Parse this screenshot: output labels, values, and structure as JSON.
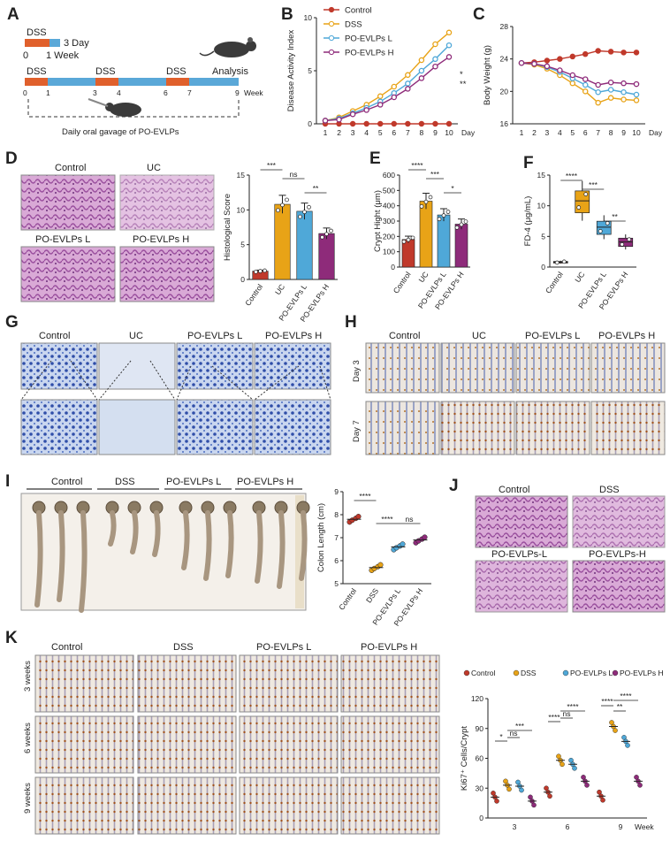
{
  "panels": [
    "A",
    "B",
    "C",
    "D",
    "E",
    "F",
    "G",
    "H",
    "I",
    "J",
    "K"
  ],
  "panel_a": {
    "dss": "DSS",
    "day3": "3 Day",
    "zero": "0",
    "week1": "1 Week",
    "analysis": "Analysis",
    "timeline_dss": [
      "DSS",
      "DSS",
      "DSS"
    ],
    "ticks": [
      "0",
      "1",
      "3",
      "4",
      "6",
      "7",
      "9"
    ],
    "week_label": "Week",
    "gavage": "Daily oral gavage of PO-EVLPs"
  },
  "groups4_ctrl": [
    "Control",
    "DSS",
    "PO-EVLPs L",
    "PO-EVLPs H"
  ],
  "groups4_uc": [
    "Control",
    "UC",
    "PO-EVLPs L",
    "PO-EVLPs H"
  ],
  "group_colors": {
    "Control": "#c0392b",
    "DSS": "#e8a317",
    "L": "#4fa8d8",
    "H": "#8e2b7a"
  },
  "legend_b": [
    "Control",
    "DSS",
    "PO-EVLPs L",
    "PO-EVLPs H"
  ],
  "panel_j_labels": [
    "Control",
    "DSS",
    "PO-EVLPs-L",
    "PO-EVLPs-H"
  ],
  "panel_h_rows": [
    "Day 3",
    "Day 7"
  ],
  "panel_k_rows": [
    "3 weeks",
    "6 weeks",
    "9 weeks"
  ],
  "chart_data": [
    {
      "panel": "B",
      "type": "line",
      "xlabel": "Day",
      "ylabel": "Disease Activity Index",
      "x": [
        1,
        2,
        3,
        4,
        5,
        6,
        7,
        8,
        9,
        10
      ],
      "ylim": [
        0,
        10
      ],
      "yticks": [
        0,
        5,
        10
      ],
      "series": [
        {
          "name": "Control",
          "values": [
            0,
            0,
            0,
            0,
            0,
            0,
            0,
            0,
            0,
            0
          ]
        },
        {
          "name": "DSS",
          "values": [
            0.3,
            0.6,
            1.2,
            1.8,
            2.6,
            3.5,
            4.6,
            6.0,
            7.5,
            8.6
          ]
        },
        {
          "name": "PO-EVLPs L",
          "values": [
            0.3,
            0.5,
            1.0,
            1.5,
            2.1,
            2.9,
            3.8,
            5.0,
            6.1,
            7.4
          ]
        },
        {
          "name": "PO-EVLPs H",
          "values": [
            0.3,
            0.4,
            0.9,
            1.3,
            1.8,
            2.5,
            3.3,
            4.3,
            5.4,
            6.3
          ]
        }
      ],
      "annotations": [
        "*",
        "**"
      ]
    },
    {
      "panel": "C",
      "type": "line",
      "xlabel": "Day",
      "ylabel": "Body Weight (g)",
      "x": [
        1,
        2,
        3,
        4,
        5,
        6,
        7,
        8,
        9,
        10
      ],
      "ylim": [
        16,
        28
      ],
      "yticks": [
        16,
        20,
        24,
        28
      ],
      "series": [
        {
          "name": "Control",
          "values": [
            23.5,
            23.6,
            23.8,
            24.0,
            24.3,
            24.6,
            25.0,
            24.9,
            24.8,
            24.8
          ]
        },
        {
          "name": "DSS",
          "values": [
            23.5,
            23.3,
            22.8,
            22.0,
            21.0,
            20.0,
            18.6,
            19.2,
            19.0,
            18.9
          ]
        },
        {
          "name": "PO-EVLPs L",
          "values": [
            23.5,
            23.4,
            23.0,
            22.4,
            21.6,
            20.8,
            19.9,
            20.2,
            19.9,
            19.6
          ]
        },
        {
          "name": "PO-EVLPs H",
          "values": [
            23.5,
            23.4,
            23.1,
            22.6,
            22.0,
            21.5,
            20.8,
            21.1,
            21.0,
            20.9
          ]
        }
      ]
    },
    {
      "panel": "D",
      "type": "bar",
      "ylabel": "Histological Score",
      "categories": [
        "Control",
        "UC",
        "PO-EVLPs L",
        "PO-EVLPs H"
      ],
      "values": [
        1.2,
        10.8,
        9.8,
        6.6
      ],
      "ylim": [
        0,
        15
      ],
      "yticks": [
        0,
        5,
        10,
        15
      ],
      "annotations": [
        "***",
        "ns",
        "**"
      ]
    },
    {
      "panel": "E",
      "type": "bar",
      "ylabel": "Crypt Hight (μm)",
      "categories": [
        "Control",
        "UC",
        "PO-EVLPs L",
        "PO-EVLPs H"
      ],
      "values": [
        180,
        430,
        340,
        280
      ],
      "ylim": [
        0,
        600
      ],
      "yticks": [
        0,
        100,
        200,
        300,
        400,
        500,
        600
      ],
      "annotations": [
        "****",
        "***",
        "*"
      ]
    },
    {
      "panel": "F",
      "type": "box",
      "ylabel": "FD-4 (μg/mL)",
      "categories": [
        "Control",
        "UC",
        "PO-EVLPs L",
        "PO-EVLPs H"
      ],
      "values": [
        0.8,
        10.8,
        6.5,
        4.1
      ],
      "ylim": [
        0,
        15
      ],
      "yticks": [
        0,
        5,
        10,
        15
      ],
      "annotations": [
        "****",
        "***",
        "**"
      ]
    },
    {
      "panel": "I",
      "type": "scatter",
      "ylabel": "Colon Length (cm)",
      "categories": [
        "Control",
        "DSS",
        "PO-EVLPs L",
        "PO-EVLPs H"
      ],
      "values": [
        7.8,
        5.7,
        6.6,
        6.9
      ],
      "ylim": [
        5,
        9
      ],
      "yticks": [
        5,
        6,
        7,
        8,
        9
      ],
      "annotations": [
        "****",
        "****",
        "ns"
      ]
    },
    {
      "panel": "K",
      "type": "scatter",
      "ylabel": "Ki67⁺ Cells/Crypt",
      "xlabel": "Week",
      "categories": [
        "3",
        "6",
        "9"
      ],
      "ylim": [
        0,
        120
      ],
      "yticks": [
        0,
        30,
        60,
        90,
        120
      ],
      "legend": [
        "Control",
        "DSS",
        "PO-EVLPs L",
        "PO-EVLPs H"
      ],
      "series": [
        {
          "name": "Control",
          "values": [
            21,
            26,
            22
          ]
        },
        {
          "name": "DSS",
          "values": [
            33,
            58,
            92
          ]
        },
        {
          "name": "PO-EVLPs L",
          "values": [
            32,
            54,
            77
          ]
        },
        {
          "name": "PO-EVLPs H",
          "values": [
            17,
            37,
            37
          ]
        }
      ],
      "annotations": [
        "*",
        "ns",
        "***",
        "****",
        "ns",
        "****",
        "****",
        "**",
        "****"
      ]
    }
  ]
}
